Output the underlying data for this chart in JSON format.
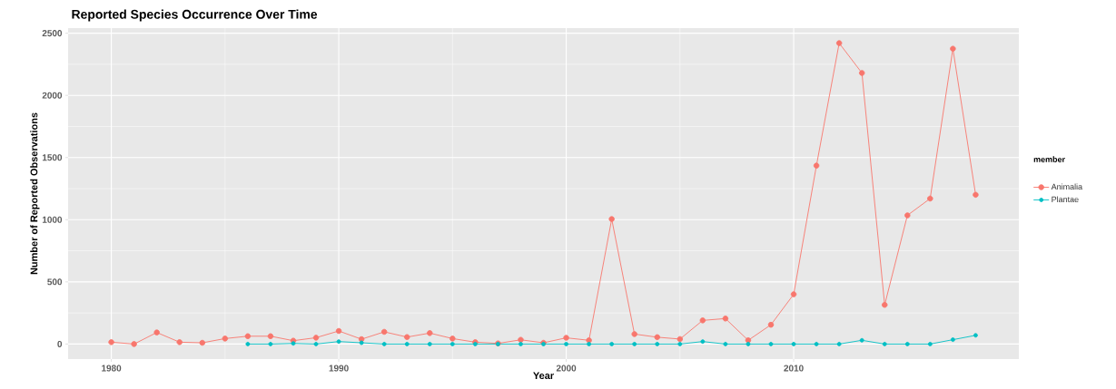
{
  "chart_data": {
    "type": "line",
    "title": "Reported Species Occurrence Over Time",
    "xlabel": "Year",
    "ylabel": "Number of Reported Observations",
    "legend_title": "member",
    "xlim": [
      1978.1,
      2019.9
    ],
    "xticks": [
      1980,
      1990,
      2000,
      2010
    ],
    "ylim": [
      -121,
      2541
    ],
    "yticks": [
      0,
      500,
      1000,
      1500,
      2000,
      2500
    ],
    "grid": true,
    "legend": "right",
    "marker": "circle",
    "line_style": "solid",
    "series": [
      {
        "name": "Animalia",
        "color": "#f8766d",
        "x": [
          1980,
          1981,
          1982,
          1983,
          1984,
          1985,
          1986,
          1987,
          1988,
          1989,
          1990,
          1991,
          1992,
          1993,
          1994,
          1995,
          1996,
          1997,
          1998,
          1999,
          2000,
          2001,
          2002,
          2003,
          2004,
          2005,
          2006,
          2007,
          2008,
          2009,
          2010,
          2011,
          2012,
          2013,
          2014,
          2015,
          2016,
          2017,
          2018
        ],
        "values": [
          15,
          0,
          93,
          15,
          10,
          44,
          63,
          63,
          27,
          51,
          105,
          39,
          98,
          56,
          88,
          44,
          15,
          5,
          34,
          10,
          50,
          30,
          1005,
          80,
          55,
          40,
          190,
          205,
          30,
          155,
          400,
          1435,
          2420,
          2180,
          315,
          1035,
          1170,
          2375,
          1200
        ]
      },
      {
        "name": "Plantae",
        "color": "#00bfc4",
        "x": [
          1986,
          1987,
          1988,
          1989,
          1990,
          1991,
          1992,
          1993,
          1994,
          1995,
          1996,
          1997,
          1998,
          1999,
          2000,
          2001,
          2002,
          2003,
          2004,
          2005,
          2006,
          2007,
          2008,
          2009,
          2010,
          2011,
          2012,
          2013,
          2014,
          2015,
          2016,
          2017,
          2018
        ],
        "values": [
          0,
          0,
          5,
          0,
          20,
          10,
          0,
          0,
          0,
          0,
          0,
          0,
          0,
          0,
          0,
          0,
          0,
          0,
          0,
          0,
          20,
          0,
          0,
          0,
          0,
          0,
          0,
          30,
          0,
          0,
          0,
          35,
          70
        ]
      }
    ]
  }
}
